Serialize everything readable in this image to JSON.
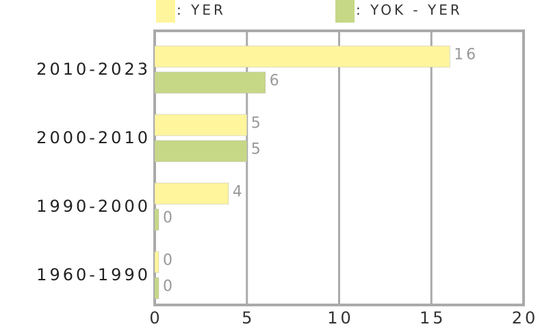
{
  "chart_data": {
    "type": "hbar",
    "categories": [
      "2010-2023",
      "2000-2010",
      "1990-2000",
      "1960-1990"
    ],
    "series": [
      {
        "name": ": YER",
        "color": "#fff59d",
        "values": [
          16,
          5,
          4,
          0
        ]
      },
      {
        "name": ": YOK - YER",
        "color": "#c6d886",
        "values": [
          6,
          5,
          0,
          0
        ]
      }
    ],
    "xlim": [
      0,
      20
    ],
    "xticks": [
      0,
      5,
      10,
      15,
      20
    ],
    "grid": true
  }
}
